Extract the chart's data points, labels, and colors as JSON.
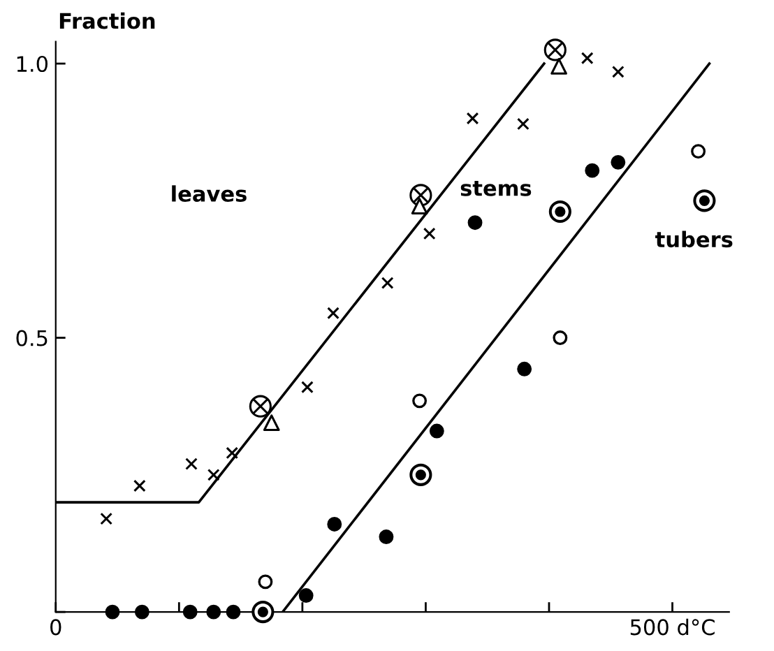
{
  "chart_data": {
    "type": "scatter",
    "ylabel": "Fraction",
    "annotations": [
      "leaves",
      "stems",
      "tubers"
    ],
    "xlim": [
      0,
      546
    ],
    "ylim": [
      0,
      1.04
    ],
    "xticks": [
      0,
      {
        "value": 100,
        "label": null
      },
      {
        "value": 200,
        "label": null
      },
      {
        "value": 300,
        "label": null
      },
      {
        "value": 400,
        "label": null
      },
      {
        "value": 500,
        "label": "500 d°C"
      }
    ],
    "yticks": [
      {
        "value": 0,
        "label": null
      },
      0.5,
      {
        "value": 1.0,
        "label": "1.0"
      }
    ],
    "series": [
      {
        "marker": "cross",
        "color": "#000000",
        "x": [
          41,
          68,
          110,
          128,
          143,
          204,
          225,
          269,
          303,
          338,
          379,
          431,
          456
        ],
        "values": [
          0.17,
          0.23,
          0.27,
          0.25,
          0.29,
          0.41,
          0.545,
          0.6,
          0.69,
          0.9,
          0.89,
          1.01,
          0.985
        ]
      },
      {
        "color": "#000000",
        "x": [
          166,
          296,
          405
        ],
        "values": [
          0.375,
          0.76,
          1.025
        ]
      },
      {
        "marker": "triangle",
        "color": "#ffffff",
        "x": [
          175,
          295,
          408
        ],
        "values": [
          0.345,
          0.74,
          0.995
        ]
      },
      {
        "marker": "circle",
        "color": "#000000",
        "x": [
          46,
          70,
          109,
          128,
          144,
          203,
          226,
          268,
          309,
          340,
          380,
          435,
          456
        ],
        "values": [
          0,
          0,
          0,
          0,
          0,
          0.03,
          0.16,
          0.137,
          0.33,
          0.71,
          0.443,
          0.805,
          0.82
        ]
      },
      {
        "marker": "ringed_circle",
        "color": "#000000",
        "x": [
          168,
          296,
          409,
          526
        ],
        "values": [
          0,
          0.25,
          0.73,
          0.75
        ]
      },
      {
        "marker": "circle",
        "color": "#ffffff",
        "x": [
          170,
          295,
          409,
          521
        ],
        "values": [
          0.055,
          0.385,
          0.5,
          0.84
        ]
      },
      {
        "type": "line",
        "line_style": "solid",
        "color": "#000000",
        "x": [
          0,
          116,
          396
        ],
        "values": [
          0.2,
          0.2,
          1.0
        ]
      },
      {
        "type": "line",
        "line_style": "solid",
        "color": "#000000",
        "x": [
          184,
          530
        ],
        "values": [
          0,
          1.0
        ]
      }
    ]
  }
}
